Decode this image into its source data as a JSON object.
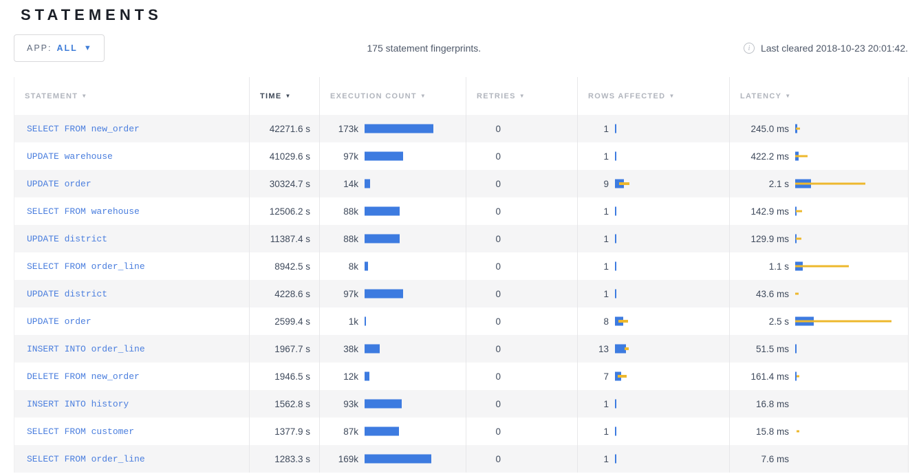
{
  "page": {
    "title": "STATEMENTS"
  },
  "toolbar": {
    "app_filter": {
      "label": "APP:",
      "value": "ALL"
    },
    "summary": "175 statement fingerprints.",
    "last_cleared": "Last cleared 2018-10-23 20:01:42.",
    "info_icon": "i"
  },
  "colors": {
    "bar_blue": "#3d7be0",
    "bar_yellow": "#edb82e",
    "statement_link_blue": "#4a7ede",
    "sorted_header": "#3e4857",
    "header_gray": "#b1b5bd",
    "row_stripe": "#f5f5f6"
  },
  "table": {
    "columns": [
      {
        "key": "statement",
        "label": "STATEMENT",
        "sorted": false
      },
      {
        "key": "time",
        "label": "TIME",
        "sorted": true
      },
      {
        "key": "count",
        "label": "EXECUTION COUNT",
        "sorted": false
      },
      {
        "key": "retries",
        "label": "RETRIES",
        "sorted": false
      },
      {
        "key": "rows",
        "label": "ROWS AFFECTED",
        "sorted": false
      },
      {
        "key": "latency",
        "label": "LATENCY",
        "sorted": false
      }
    ],
    "sort_arrow": "▼",
    "rows": [
      {
        "statement": "SELECT FROM new_order",
        "time": "42271.6 s",
        "count": {
          "label": "173k",
          "bar": 100
        },
        "retries": {
          "label": "0"
        },
        "rows": {
          "label": "1",
          "bar": 2,
          "dev": null
        },
        "latency": {
          "label": "245.0 ms",
          "bar": 3,
          "dev": [
            1,
            7
          ]
        }
      },
      {
        "statement": "UPDATE warehouse",
        "time": "41029.6 s",
        "count": {
          "label": "97k",
          "bar": 56
        },
        "retries": {
          "label": "0"
        },
        "rows": {
          "label": "1",
          "bar": 2,
          "dev": null
        },
        "latency": {
          "label": "422.2 ms",
          "bar": 5,
          "dev": [
            0,
            18
          ]
        }
      },
      {
        "statement": "UPDATE order",
        "time": "30324.7 s",
        "count": {
          "label": "14k",
          "bar": 8
        },
        "retries": {
          "label": "0"
        },
        "rows": {
          "label": "9",
          "bar": 13,
          "dev": [
            6,
            21
          ]
        },
        "latency": {
          "label": "2.1 s",
          "bar": 23,
          "dev": [
            0,
            102
          ]
        }
      },
      {
        "statement": "SELECT FROM warehouse",
        "time": "12506.2 s",
        "count": {
          "label": "88k",
          "bar": 51
        },
        "retries": {
          "label": "0"
        },
        "rows": {
          "label": "1",
          "bar": 2,
          "dev": null
        },
        "latency": {
          "label": "142.9 ms",
          "bar": 2,
          "dev": [
            1,
            10
          ]
        }
      },
      {
        "statement": "UPDATE district",
        "time": "11387.4 s",
        "count": {
          "label": "88k",
          "bar": 51
        },
        "retries": {
          "label": "0"
        },
        "rows": {
          "label": "1",
          "bar": 2,
          "dev": null
        },
        "latency": {
          "label": "129.9 ms",
          "bar": 2,
          "dev": [
            1,
            9
          ]
        }
      },
      {
        "statement": "SELECT FROM order_line",
        "time": "8942.5 s",
        "count": {
          "label": "8k",
          "bar": 5
        },
        "retries": {
          "label": "0"
        },
        "rows": {
          "label": "1",
          "bar": 2,
          "dev": null
        },
        "latency": {
          "label": "1.1 s",
          "bar": 11,
          "dev": [
            0,
            78
          ]
        }
      },
      {
        "statement": "UPDATE district",
        "time": "4228.6 s",
        "count": {
          "label": "97k",
          "bar": 56
        },
        "retries": {
          "label": "0"
        },
        "rows": {
          "label": "1",
          "bar": 2,
          "dev": null
        },
        "latency": {
          "label": "43.6 ms",
          "bar": 0,
          "dev": [
            0,
            5
          ]
        }
      },
      {
        "statement": "UPDATE order",
        "time": "2599.4 s",
        "count": {
          "label": "1k",
          "bar": 2
        },
        "retries": {
          "label": "0"
        },
        "rows": {
          "label": "8",
          "bar": 12,
          "dev": [
            5,
            19
          ]
        },
        "latency": {
          "label": "2.5 s",
          "bar": 27,
          "dev": [
            0,
            140
          ]
        }
      },
      {
        "statement": "INSERT INTO order_line",
        "time": "1967.7 s",
        "count": {
          "label": "38k",
          "bar": 22
        },
        "retries": {
          "label": "0"
        },
        "rows": {
          "label": "13",
          "bar": 16,
          "dev": [
            14,
            20
          ]
        },
        "latency": {
          "label": "51.5 ms",
          "bar": 2,
          "dev": null
        }
      },
      {
        "statement": "DELETE FROM new_order",
        "time": "1946.5 s",
        "count": {
          "label": "12k",
          "bar": 7
        },
        "retries": {
          "label": "0"
        },
        "rows": {
          "label": "7",
          "bar": 9,
          "dev": [
            4,
            17
          ]
        },
        "latency": {
          "label": "161.4 ms",
          "bar": 2,
          "dev": [
            2,
            6
          ]
        }
      },
      {
        "statement": "INSERT INTO history",
        "time": "1562.8 s",
        "count": {
          "label": "93k",
          "bar": 54
        },
        "retries": {
          "label": "0"
        },
        "rows": {
          "label": "1",
          "bar": 2,
          "dev": null
        },
        "latency": {
          "label": "16.8 ms",
          "bar": 0,
          "dev": null
        }
      },
      {
        "statement": "SELECT FROM customer",
        "time": "1377.9 s",
        "count": {
          "label": "87k",
          "bar": 50
        },
        "retries": {
          "label": "0"
        },
        "rows": {
          "label": "1",
          "bar": 2,
          "dev": null
        },
        "latency": {
          "label": "15.8 ms",
          "bar": 0,
          "dev": [
            2,
            6
          ]
        }
      },
      {
        "statement": "SELECT FROM order_line",
        "time": "1283.3 s",
        "count": {
          "label": "169k",
          "bar": 97
        },
        "retries": {
          "label": "0"
        },
        "rows": {
          "label": "1",
          "bar": 2,
          "dev": null
        },
        "latency": {
          "label": "7.6 ms",
          "bar": 0,
          "dev": null
        }
      }
    ]
  }
}
